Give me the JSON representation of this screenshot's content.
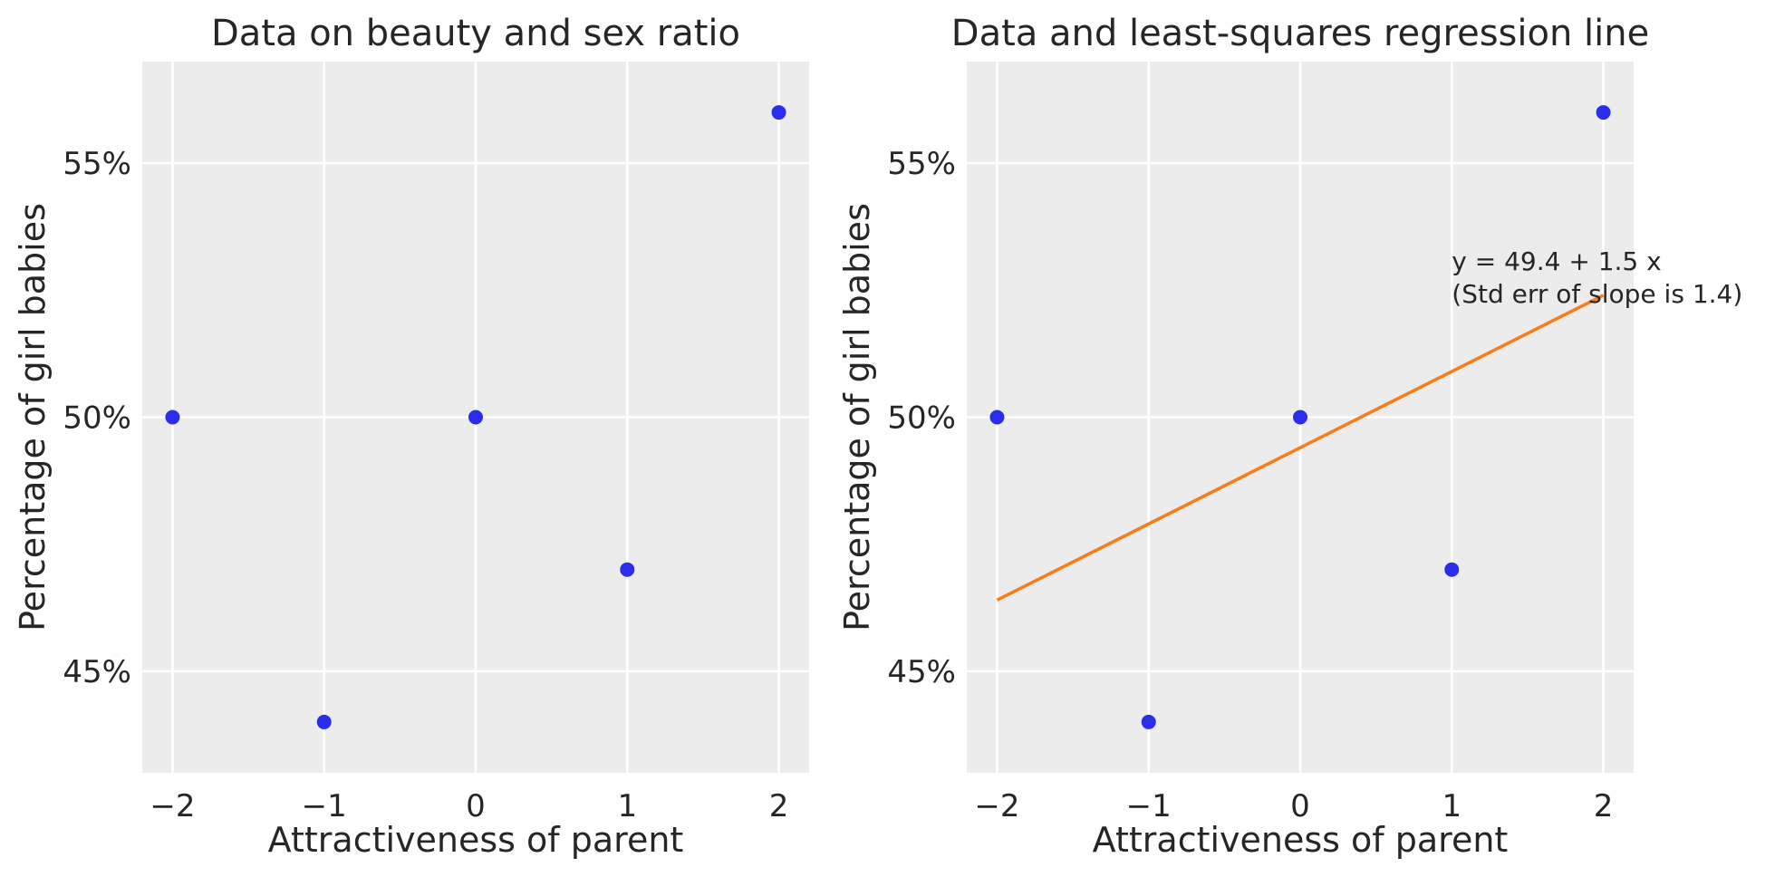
{
  "chart_data": [
    {
      "type": "scatter",
      "title": "Data on beauty and sex ratio",
      "xlabel": "Attractiveness of parent",
      "ylabel": "Percentage of girl babies",
      "xlim": [
        -2.2,
        2.2
      ],
      "ylim": [
        43.0,
        57.0
      ],
      "xticks": [
        -2,
        -1,
        0,
        1,
        2
      ],
      "xtick_labels": [
        "−2",
        "−1",
        "0",
        "1",
        "2"
      ],
      "yticks": [
        45,
        50,
        55
      ],
      "ytick_labels": [
        "45%",
        "50%",
        "55%"
      ],
      "grid": true,
      "points": [
        {
          "x": -2,
          "y": 50
        },
        {
          "x": -1,
          "y": 44
        },
        {
          "x": 0,
          "y": 50
        },
        {
          "x": 1,
          "y": 47
        },
        {
          "x": 2,
          "y": 56
        }
      ],
      "point_color": "#2a2eec"
    },
    {
      "type": "scatter",
      "title": "Data and least-squares regression line",
      "xlabel": "Attractiveness of parent",
      "ylabel": "Percentage of girl babies",
      "xlim": [
        -2.2,
        2.2
      ],
      "ylim": [
        43.0,
        57.0
      ],
      "xticks": [
        -2,
        -1,
        0,
        1,
        2
      ],
      "xtick_labels": [
        "−2",
        "−1",
        "0",
        "1",
        "2"
      ],
      "yticks": [
        45,
        50,
        55
      ],
      "ytick_labels": [
        "45%",
        "50%",
        "55%"
      ],
      "grid": true,
      "points": [
        {
          "x": -2,
          "y": 50
        },
        {
          "x": -1,
          "y": 44
        },
        {
          "x": 0,
          "y": 50
        },
        {
          "x": 1,
          "y": 47
        },
        {
          "x": 2,
          "y": 56
        }
      ],
      "point_color": "#2a2eec",
      "regression_line": {
        "intercept": 49.4,
        "slope": 1.5,
        "x_range": [
          -2,
          2
        ],
        "color": "#fa7c17"
      },
      "annotation": {
        "x": 1,
        "y": 52.9,
        "lines": [
          "y = 49.4 + 1.5 x",
          "(Std err of slope is 1.4)"
        ]
      }
    }
  ]
}
